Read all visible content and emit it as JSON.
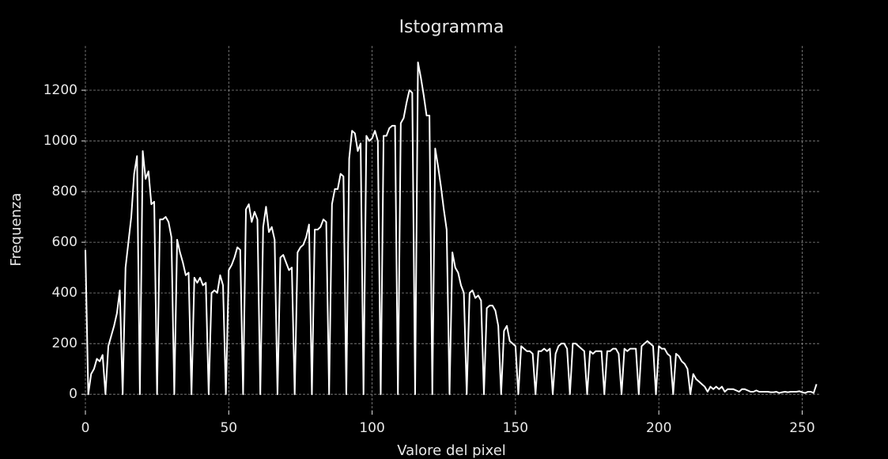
{
  "chart_data": {
    "type": "line",
    "title": "Istogramma",
    "xlabel": "Valore del pixel",
    "ylabel": "Frequenza",
    "color": "#ffffff",
    "grid": true,
    "xlim": [
      0,
      255
    ],
    "ylim": [
      -65,
      1375
    ],
    "xticks": [
      0,
      50,
      100,
      150,
      200,
      250
    ],
    "yticks": [
      0,
      200,
      400,
      600,
      800,
      1000,
      1200
    ],
    "x": [
      0,
      1,
      2,
      3,
      4,
      5,
      6,
      7,
      8,
      9,
      10,
      11,
      12,
      13,
      14,
      15,
      16,
      17,
      18,
      19,
      20,
      21,
      22,
      23,
      24,
      25,
      26,
      27,
      28,
      29,
      30,
      31,
      32,
      33,
      34,
      35,
      36,
      37,
      38,
      39,
      40,
      41,
      42,
      43,
      44,
      45,
      46,
      47,
      48,
      49,
      50,
      51,
      52,
      53,
      54,
      55,
      56,
      57,
      58,
      59,
      60,
      61,
      62,
      63,
      64,
      65,
      66,
      67,
      68,
      69,
      70,
      71,
      72,
      73,
      74,
      75,
      76,
      77,
      78,
      79,
      80,
      81,
      82,
      83,
      84,
      85,
      86,
      87,
      88,
      89,
      90,
      91,
      92,
      93,
      94,
      95,
      96,
      97,
      98,
      99,
      100,
      101,
      102,
      103,
      104,
      105,
      106,
      107,
      108,
      109,
      110,
      111,
      112,
      113,
      114,
      115,
      116,
      117,
      118,
      119,
      120,
      121,
      122,
      123,
      124,
      125,
      126,
      127,
      128,
      129,
      130,
      131,
      132,
      133,
      134,
      135,
      136,
      137,
      138,
      139,
      140,
      141,
      142,
      143,
      144,
      145,
      146,
      147,
      148,
      149,
      150,
      151,
      152,
      153,
      154,
      155,
      156,
      157,
      158,
      159,
      160,
      161,
      162,
      163,
      164,
      165,
      166,
      167,
      168,
      169,
      170,
      171,
      172,
      173,
      174,
      175,
      176,
      177,
      178,
      179,
      180,
      181,
      182,
      183,
      184,
      185,
      186,
      187,
      188,
      189,
      190,
      191,
      192,
      193,
      194,
      195,
      196,
      197,
      198,
      199,
      200,
      201,
      202,
      203,
      204,
      205,
      206,
      207,
      208,
      209,
      210,
      211,
      212,
      213,
      214,
      215,
      216,
      217,
      218,
      219,
      220,
      221,
      222,
      223,
      224,
      225,
      226,
      227,
      228,
      229,
      230,
      231,
      232,
      233,
      234,
      235,
      236,
      237,
      238,
      239,
      240,
      241,
      242,
      243,
      244,
      245,
      246,
      247,
      248,
      249,
      250,
      251,
      252,
      253,
      254,
      255
    ],
    "values": [
      570,
      0,
      80,
      100,
      140,
      130,
      155,
      0,
      190,
      230,
      270,
      320,
      410,
      0,
      500,
      600,
      700,
      870,
      940,
      0,
      960,
      850,
      880,
      750,
      760,
      0,
      690,
      690,
      700,
      680,
      620,
      0,
      610,
      560,
      520,
      470,
      480,
      0,
      460,
      440,
      460,
      430,
      440,
      0,
      400,
      410,
      400,
      470,
      430,
      0,
      490,
      510,
      540,
      580,
      570,
      0,
      730,
      750,
      680,
      720,
      690,
      0,
      660,
      740,
      640,
      660,
      610,
      0,
      540,
      550,
      520,
      490,
      500,
      0,
      560,
      580,
      590,
      620,
      670,
      0,
      650,
      650,
      660,
      690,
      680,
      0,
      750,
      810,
      810,
      870,
      860,
      0,
      930,
      1040,
      1030,
      960,
      990,
      0,
      1020,
      1000,
      1010,
      1040,
      1000,
      0,
      1020,
      1020,
      1050,
      1060,
      1060,
      0,
      1070,
      1090,
      1150,
      1200,
      1190,
      0,
      1310,
      1250,
      1180,
      1100,
      1100,
      0,
      970,
      900,
      820,
      730,
      650,
      0,
      560,
      500,
      480,
      430,
      400,
      0,
      400,
      410,
      380,
      390,
      370,
      0,
      340,
      350,
      350,
      330,
      270,
      0,
      250,
      270,
      210,
      200,
      190,
      0,
      190,
      180,
      170,
      170,
      160,
      0,
      170,
      170,
      180,
      170,
      180,
      0,
      160,
      190,
      200,
      200,
      180,
      0,
      200,
      200,
      190,
      180,
      170,
      0,
      170,
      160,
      170,
      170,
      170,
      0,
      170,
      170,
      180,
      180,
      160,
      0,
      180,
      170,
      180,
      180,
      180,
      0,
      190,
      200,
      210,
      200,
      190,
      0,
      190,
      180,
      180,
      160,
      150,
      0,
      160,
      150,
      130,
      120,
      100,
      0,
      80,
      60,
      50,
      40,
      30,
      10,
      30,
      20,
      30,
      20,
      30,
      10,
      20,
      20,
      20,
      15,
      10,
      20,
      20,
      15,
      10,
      10,
      15,
      10,
      10,
      10,
      10,
      8,
      8,
      10,
      5,
      8,
      10,
      8,
      10,
      10,
      10,
      12,
      8,
      5,
      10,
      10,
      5,
      40
    ]
  }
}
